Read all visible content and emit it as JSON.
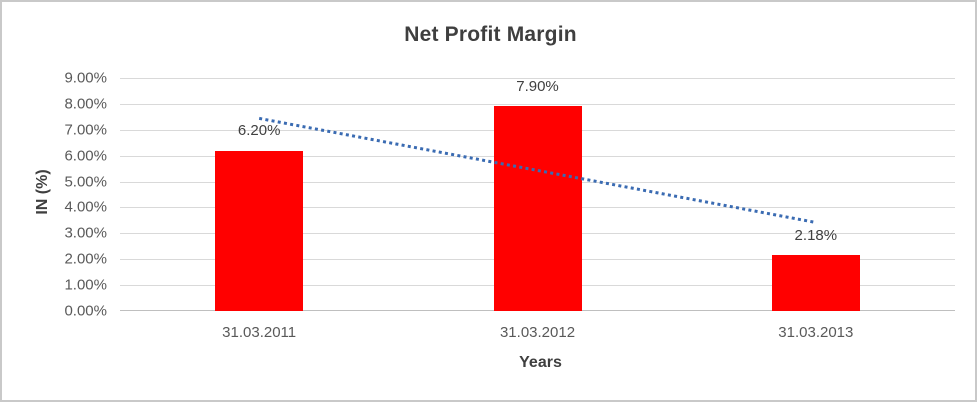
{
  "chart_data": {
    "type": "bar",
    "title": "Net Profit Margin",
    "categories": [
      "31.03.2011",
      "31.03.2012",
      "31.03.2013"
    ],
    "values": [
      6.2,
      7.9,
      2.18
    ],
    "data_labels": [
      "6.20%",
      "7.90%",
      "2.18%"
    ],
    "xlabel": "Years",
    "ylabel": "IN (%)",
    "ylim": [
      0,
      9
    ],
    "ytick_step": 1,
    "ytick_labels": [
      "0.00%",
      "1.00%",
      "2.00%",
      "3.00%",
      "4.00%",
      "5.00%",
      "6.00%",
      "7.00%",
      "8.00%",
      "9.00%"
    ],
    "grid": true,
    "legend": "none",
    "bar_color": "#FF0000",
    "gridline_color": "#D9D9D9",
    "axis_line_color": "#BFBFBF",
    "tick_text_color": "#595959",
    "label_text_color": "#404040",
    "title_color": "#3F3F3F",
    "trendline": {
      "type": "linear",
      "style": "dotted",
      "color": "#3A6BB2",
      "start_value": 7.44,
      "end_value": 3.42
    }
  }
}
